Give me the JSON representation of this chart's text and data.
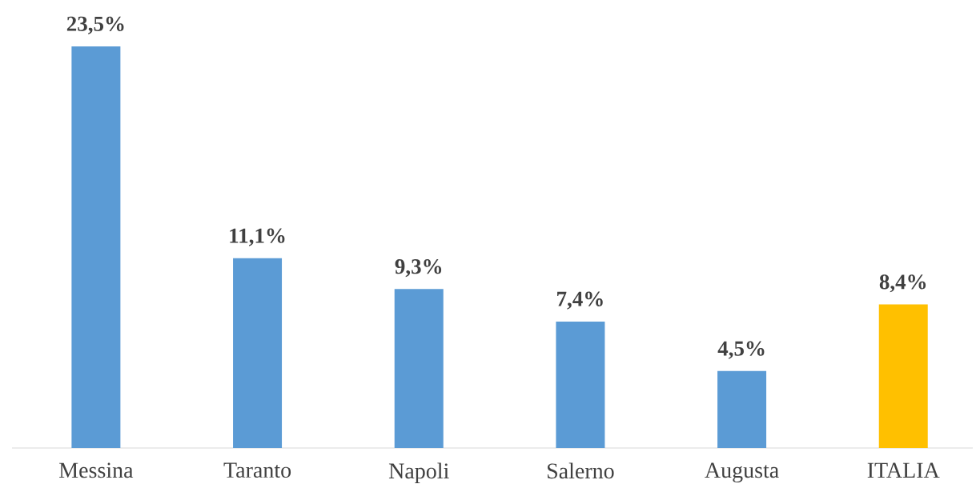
{
  "chart_data": {
    "type": "bar",
    "categories": [
      "Messina",
      "Taranto",
      "Napoli",
      "Salerno",
      "Augusta",
      "ITALIA"
    ],
    "values": [
      23.5,
      11.1,
      9.3,
      7.4,
      4.5,
      8.4
    ],
    "colors": [
      "#5b9bd5",
      "#5b9bd5",
      "#5b9bd5",
      "#5b9bd5",
      "#5b9bd5",
      "#ffc000"
    ],
    "value_labels": [
      "23,5%",
      "11,1%",
      "9,3%",
      "7,4%",
      "4,5%",
      "8,4%"
    ]
  }
}
